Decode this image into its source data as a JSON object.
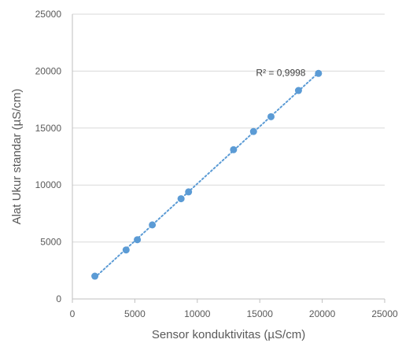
{
  "chart_data": {
    "type": "scatter",
    "title": "",
    "xlabel": "Sensor konduktivitas (µS/cm)",
    "ylabel": "Alat Ukur standar (µS/cm)",
    "xlim": [
      0,
      25000
    ],
    "ylim": [
      0,
      25000
    ],
    "xticks": [
      "0",
      "5000",
      "10000",
      "15000",
      "20000",
      "25000"
    ],
    "yticks": [
      "0",
      "5000",
      "10000",
      "15000",
      "20000",
      "25000"
    ],
    "grid": "horizontal",
    "legend": "none",
    "colors": {
      "points": "#5b9bd5",
      "trendline": "#5b9bd5",
      "gridline": "#d9d9d9",
      "axis": "#bfbfbf"
    },
    "series": [
      {
        "x": [
          1800,
          4300,
          5200,
          6400,
          8700,
          9300,
          12900,
          14500,
          15900,
          18100,
          19700
        ],
        "y": [
          2000,
          4300,
          5200,
          6500,
          8800,
          9400,
          13100,
          14700,
          16000,
          18300,
          19800
        ]
      }
    ],
    "trendline": {
      "style": "dotted",
      "x": [
        1800,
        19700
      ]
    },
    "annotations": [
      {
        "text": "R² = 0,9998",
        "x": 14700,
        "y": 19800
      }
    ]
  }
}
